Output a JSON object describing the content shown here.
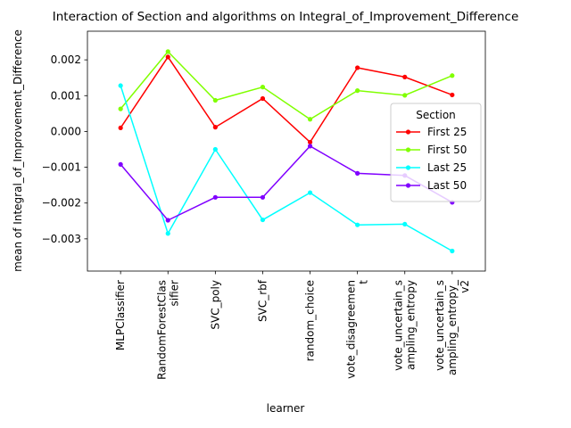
{
  "chart_data": {
    "type": "line",
    "title": "Interaction of Section and algorithms on Integral_of_Improvement_Difference",
    "xlabel": "learner",
    "ylabel": "mean of Integral_of_Improvement_Difference",
    "categories": [
      [
        "MLPClassifier"
      ],
      [
        "RandomForestClas",
        "sifier"
      ],
      [
        "SVC_poly"
      ],
      [
        "SVC_rbf"
      ],
      [
        "random_choice"
      ],
      [
        "vote_disagreemen",
        "t"
      ],
      [
        "vote_uncertain_s",
        "ampling_entropy"
      ],
      [
        "vote_uncertain_s",
        "ampling_entropy_",
        "v2"
      ]
    ],
    "yticks": [
      -0.003,
      -0.002,
      -0.001,
      0.0,
      0.001,
      0.002
    ],
    "ytick_labels": [
      "−0.003",
      "−0.002",
      "−0.001",
      "0.000",
      "0.001",
      "0.002"
    ],
    "ylim": [
      -0.0039,
      0.0028
    ],
    "legend": {
      "title": "Section",
      "placement": "center-right"
    },
    "series": [
      {
        "name": "First 25",
        "color": "#ff0000",
        "values": [
          0.0001,
          0.00208,
          0.00012,
          0.00092,
          -0.0003,
          0.00178,
          0.00152,
          0.00102
        ]
      },
      {
        "name": "First 50",
        "color": "#80ff00",
        "values": [
          0.00063,
          0.00223,
          0.00087,
          0.00124,
          0.00034,
          0.00114,
          0.00101,
          0.00156
        ]
      },
      {
        "name": "Last 25",
        "color": "#00ffff",
        "values": [
          0.00128,
          -0.00285,
          -0.0005,
          -0.00247,
          -0.00171,
          -0.00261,
          -0.00259,
          -0.00334
        ]
      },
      {
        "name": "Last 50",
        "color": "#8000ff",
        "values": [
          -0.00092,
          -0.00248,
          -0.00184,
          -0.00184,
          -0.00041,
          -0.00117,
          -0.00123,
          -0.00198
        ]
      }
    ]
  }
}
